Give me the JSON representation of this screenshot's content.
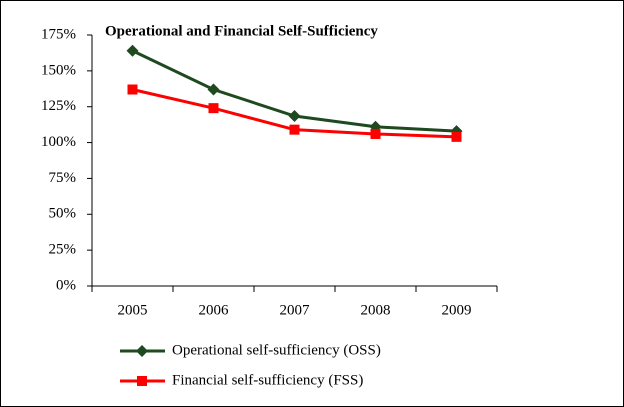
{
  "chart_data": {
    "type": "line",
    "title": "Operational and Financial Self-Sufficiency",
    "categories": [
      "2005",
      "2006",
      "2007",
      "2008",
      "2009"
    ],
    "series": [
      {
        "name": "Operational self-sufficiency (OSS)",
        "color": "#1f4a1f",
        "marker": "diamond",
        "values": [
          164,
          137,
          118.5,
          111,
          108
        ]
      },
      {
        "name": "Financial self-sufficiency (FSS)",
        "color": "#ff0000",
        "marker": "square",
        "values": [
          137,
          124,
          109,
          106,
          104
        ]
      }
    ],
    "ylim": [
      0,
      175
    ],
    "yticks": [
      {
        "value": 0,
        "label": "0%"
      },
      {
        "value": 25,
        "label": "25%"
      },
      {
        "value": 50,
        "label": "50%"
      },
      {
        "value": 75,
        "label": "75%"
      },
      {
        "value": 100,
        "label": "100%"
      },
      {
        "value": 125,
        "label": "125%"
      },
      {
        "value": 150,
        "label": "150%"
      },
      {
        "value": 175,
        "label": "175%"
      }
    ],
    "grid": false,
    "legend": "bottom"
  }
}
